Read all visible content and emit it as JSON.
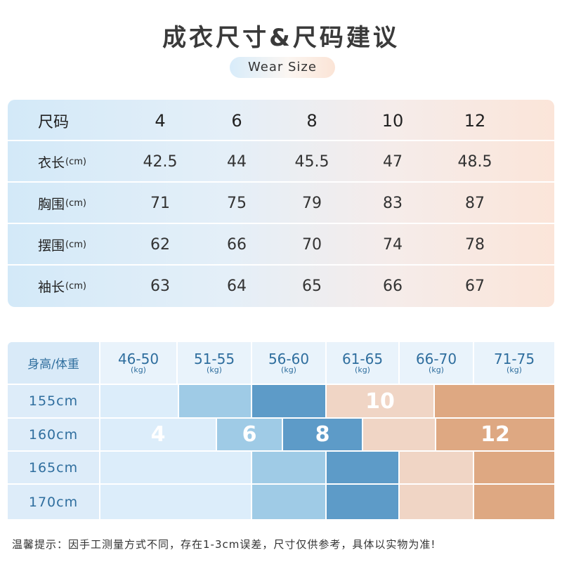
{
  "title": "成衣尺寸&尺码建议",
  "subtitle": "Wear Size",
  "size_table": {
    "header_label": "尺码",
    "sizes": [
      "4",
      "6",
      "8",
      "10",
      "12"
    ],
    "rows": [
      {
        "label": "衣长",
        "unit": "(cm)",
        "values": [
          "42.5",
          "44",
          "45.5",
          "47",
          "48.5"
        ]
      },
      {
        "label": "胸围",
        "unit": "(cm)",
        "values": [
          "71",
          "75",
          "79",
          "83",
          "87"
        ]
      },
      {
        "label": "摆围",
        "unit": "(cm)",
        "values": [
          "62",
          "66",
          "70",
          "74",
          "78"
        ]
      },
      {
        "label": "袖长",
        "unit": "(cm)",
        "values": [
          "63",
          "64",
          "65",
          "66",
          "67"
        ]
      }
    ]
  },
  "recommend": {
    "corner_label": "身高/体重",
    "weight_unit": "(kg)",
    "weights": [
      "46-50",
      "51-55",
      "56-60",
      "61-65",
      "66-70",
      "71-75"
    ],
    "heights": [
      "155cm",
      "160cm",
      "165cm",
      "170cm"
    ],
    "size_labels": {
      "s4": "4",
      "s6": "6",
      "s8": "8",
      "s10": "10",
      "s12": "12"
    },
    "colors": {
      "s4": "#dcedfa",
      "s6": "#9fcbe6",
      "s8": "#5d9bc8",
      "s10": "#f0d5c5",
      "s12": "#dea882"
    }
  },
  "note": "温馨提示：因手工测量方式不同，存在1-3cm误差，尺寸仅供参考，具体以实物为准!"
}
